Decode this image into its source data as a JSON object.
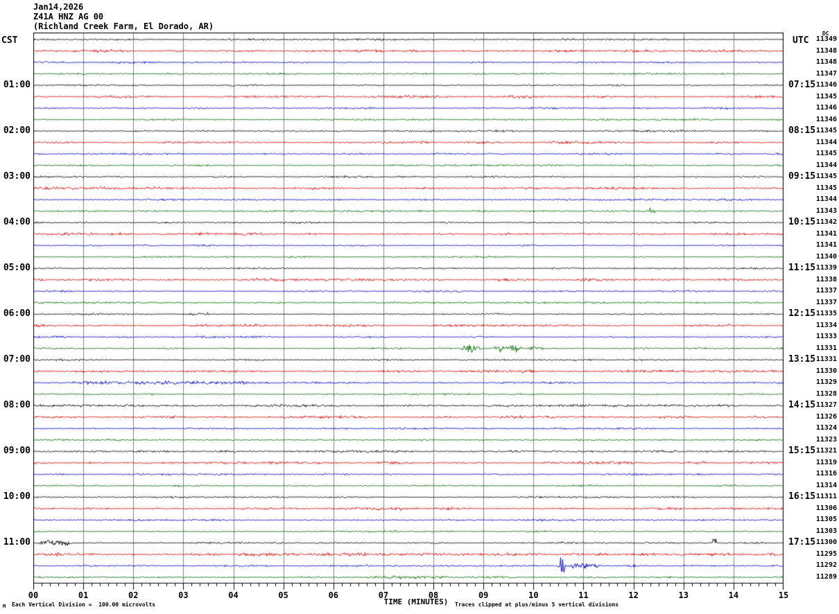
{
  "header": {
    "date": "Jan14,2026",
    "station": "Z41A HNZ AG 00",
    "location": "(Richland Creek Farm, El Dorado, AR)"
  },
  "axes": {
    "left_title": "CST",
    "right_title": "UTC",
    "dc_header": "DC",
    "x_title": "TIME (MINUTES)",
    "x_tick_labels": [
      "00",
      "01",
      "02",
      "03",
      "04",
      "05",
      "06",
      "07",
      "08",
      "09",
      "10",
      "11",
      "12",
      "13",
      "14",
      "15"
    ]
  },
  "footer": {
    "watermark": "M",
    "scale_note": "Each Vertical Division =  100.00 microvolts",
    "clip_note": "Traces clipped at plus/minus 5 vertical divisions"
  },
  "colors": {
    "black": "#000000",
    "red": "#dd0000",
    "blue": "#0000cc",
    "green": "#006600",
    "grid": "#808080"
  },
  "chart_data": {
    "type": "line",
    "subtype": "helicorder-seismogram",
    "x_axis": {
      "label": "TIME (MINUTES)",
      "range_minutes": [
        0,
        15
      ],
      "major_tick_every_min": 1,
      "minor_tick_every_sec": 10
    },
    "trace_color_cycle": [
      "black",
      "red",
      "blue",
      "green"
    ],
    "rows": [
      {
        "color": "black",
        "dc": 11349,
        "cst": "",
        "utc": ""
      },
      {
        "color": "red",
        "dc": 11348,
        "cst": "",
        "utc": ""
      },
      {
        "color": "blue",
        "dc": 11348,
        "cst": "",
        "utc": ""
      },
      {
        "color": "green",
        "dc": 11347,
        "cst": "",
        "utc": ""
      },
      {
        "color": "black",
        "dc": 11346,
        "cst": "01:00",
        "utc": "07:15"
      },
      {
        "color": "red",
        "dc": 11345,
        "cst": "",
        "utc": ""
      },
      {
        "color": "blue",
        "dc": 11346,
        "cst": "",
        "utc": ""
      },
      {
        "color": "green",
        "dc": 11346,
        "cst": "",
        "utc": ""
      },
      {
        "color": "black",
        "dc": 11345,
        "cst": "02:00",
        "utc": "08:15"
      },
      {
        "color": "red",
        "dc": 11344,
        "cst": "",
        "utc": ""
      },
      {
        "color": "blue",
        "dc": 11345,
        "cst": "",
        "utc": ""
      },
      {
        "color": "green",
        "dc": 11344,
        "cst": "",
        "utc": ""
      },
      {
        "color": "black",
        "dc": 11345,
        "cst": "03:00",
        "utc": "09:15"
      },
      {
        "color": "red",
        "dc": 11345,
        "cst": "",
        "utc": ""
      },
      {
        "color": "blue",
        "dc": 11344,
        "cst": "",
        "utc": ""
      },
      {
        "color": "green",
        "dc": 11343,
        "cst": "",
        "utc": ""
      },
      {
        "color": "black",
        "dc": 11342,
        "cst": "04:00",
        "utc": "10:15"
      },
      {
        "color": "red",
        "dc": 11341,
        "cst": "",
        "utc": ""
      },
      {
        "color": "blue",
        "dc": 11341,
        "cst": "",
        "utc": ""
      },
      {
        "color": "green",
        "dc": 11340,
        "cst": "",
        "utc": ""
      },
      {
        "color": "black",
        "dc": 11339,
        "cst": "05:00",
        "utc": "11:15"
      },
      {
        "color": "red",
        "dc": 11338,
        "cst": "",
        "utc": ""
      },
      {
        "color": "blue",
        "dc": 11337,
        "cst": "",
        "utc": ""
      },
      {
        "color": "green",
        "dc": 11337,
        "cst": "",
        "utc": ""
      },
      {
        "color": "black",
        "dc": 11335,
        "cst": "06:00",
        "utc": "12:15"
      },
      {
        "color": "red",
        "dc": 11334,
        "cst": "",
        "utc": ""
      },
      {
        "color": "blue",
        "dc": 11333,
        "cst": "",
        "utc": ""
      },
      {
        "color": "green",
        "dc": 11331,
        "cst": "",
        "utc": ""
      },
      {
        "color": "black",
        "dc": 11331,
        "cst": "07:00",
        "utc": "13:15"
      },
      {
        "color": "red",
        "dc": 11330,
        "cst": "",
        "utc": ""
      },
      {
        "color": "blue",
        "dc": 11329,
        "cst": "",
        "utc": ""
      },
      {
        "color": "green",
        "dc": 11328,
        "cst": "",
        "utc": ""
      },
      {
        "color": "black",
        "dc": 11327,
        "cst": "08:00",
        "utc": "14:15"
      },
      {
        "color": "red",
        "dc": 11326,
        "cst": "",
        "utc": ""
      },
      {
        "color": "blue",
        "dc": 11324,
        "cst": "",
        "utc": ""
      },
      {
        "color": "green",
        "dc": 11323,
        "cst": "",
        "utc": ""
      },
      {
        "color": "black",
        "dc": 11321,
        "cst": "09:00",
        "utc": "15:15"
      },
      {
        "color": "red",
        "dc": 11319,
        "cst": "",
        "utc": ""
      },
      {
        "color": "blue",
        "dc": 11316,
        "cst": "",
        "utc": ""
      },
      {
        "color": "green",
        "dc": 11314,
        "cst": "",
        "utc": ""
      },
      {
        "color": "black",
        "dc": 11311,
        "cst": "10:00",
        "utc": "16:15"
      },
      {
        "color": "red",
        "dc": 11306,
        "cst": "",
        "utc": ""
      },
      {
        "color": "blue",
        "dc": 11305,
        "cst": "",
        "utc": ""
      },
      {
        "color": "green",
        "dc": 11303,
        "cst": "",
        "utc": ""
      },
      {
        "color": "black",
        "dc": 11300,
        "cst": "11:00",
        "utc": "17:15"
      },
      {
        "color": "red",
        "dc": 11295,
        "cst": "",
        "utc": ""
      },
      {
        "color": "blue",
        "dc": 11292,
        "cst": "",
        "utc": ""
      },
      {
        "color": "green",
        "dc": 11289,
        "cst": "",
        "utc": ""
      }
    ],
    "events": [
      {
        "row": 15,
        "start": 12.25,
        "end": 12.45,
        "amp": 3.5
      },
      {
        "row": 24,
        "start": 3.05,
        "end": 3.6,
        "amp": 2.2
      },
      {
        "row": 27,
        "start": 8.55,
        "end": 8.95,
        "amp": 6.5
      },
      {
        "row": 27,
        "start": 9.15,
        "end": 9.8,
        "amp": 5.5
      },
      {
        "row": 27,
        "start": 9.85,
        "end": 10.25,
        "amp": 3
      },
      {
        "row": 30,
        "start": 0.6,
        "end": 4.4,
        "amp": 1.6
      },
      {
        "row": 32,
        "start": 0,
        "end": 15,
        "amp": 0.6
      },
      {
        "row": 36,
        "start": 0,
        "end": 15,
        "amp": 0.5
      },
      {
        "row": 44,
        "start": 0.08,
        "end": 0.85,
        "amp": 4.5
      },
      {
        "row": 44,
        "start": 13.55,
        "end": 13.68,
        "amp": 9,
        "bias": -1
      },
      {
        "row": 45,
        "start": 0,
        "end": 15,
        "amp": 0.5
      },
      {
        "row": 46,
        "start": 10.48,
        "end": 10.65,
        "amp": 13
      },
      {
        "row": 46,
        "start": 10.65,
        "end": 11.35,
        "amp": 3.5
      },
      {
        "row": 46,
        "start": 11.8,
        "end": 12.15,
        "amp": 2
      },
      {
        "row": 47,
        "start": 6.55,
        "end": 8.3,
        "amp": 1.8
      }
    ]
  }
}
